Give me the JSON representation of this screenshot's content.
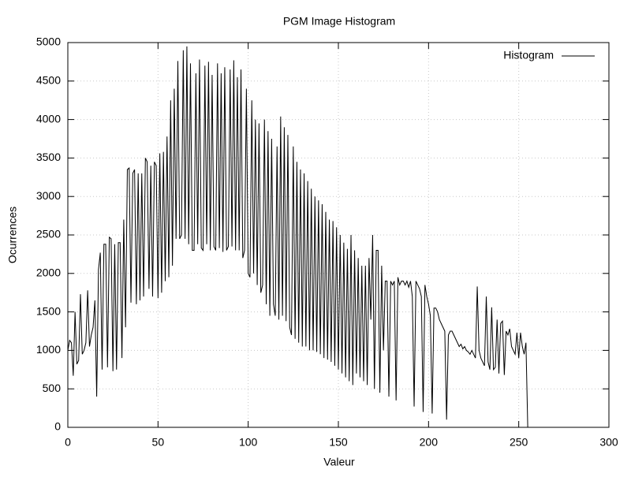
{
  "chart_data": {
    "type": "line",
    "title": "PGM Image Histogram",
    "x_label": "Valeur",
    "y_label": "Ocurrences",
    "x": [
      0,
      1,
      2,
      3,
      4,
      5,
      6,
      7,
      8,
      9,
      10,
      11,
      12,
      13,
      14,
      15,
      16,
      17,
      18,
      19,
      20,
      21,
      22,
      23,
      24,
      25,
      26,
      27,
      28,
      29,
      30,
      31,
      32,
      33,
      34,
      35,
      36,
      37,
      38,
      39,
      40,
      41,
      42,
      43,
      44,
      45,
      46,
      47,
      48,
      49,
      50,
      51,
      52,
      53,
      54,
      55,
      56,
      57,
      58,
      59,
      60,
      61,
      62,
      63,
      64,
      65,
      66,
      67,
      68,
      69,
      70,
      71,
      72,
      73,
      74,
      75,
      76,
      77,
      78,
      79,
      80,
      81,
      82,
      83,
      84,
      85,
      86,
      87,
      88,
      89,
      90,
      91,
      92,
      93,
      94,
      95,
      96,
      97,
      98,
      99,
      100,
      101,
      102,
      103,
      104,
      105,
      106,
      107,
      108,
      109,
      110,
      111,
      112,
      113,
      114,
      115,
      116,
      117,
      118,
      119,
      120,
      121,
      122,
      123,
      124,
      125,
      126,
      127,
      128,
      129,
      130,
      131,
      132,
      133,
      134,
      135,
      136,
      137,
      138,
      139,
      140,
      141,
      142,
      143,
      144,
      145,
      146,
      147,
      148,
      149,
      150,
      151,
      152,
      153,
      154,
      155,
      156,
      157,
      158,
      159,
      160,
      161,
      162,
      163,
      164,
      165,
      166,
      167,
      168,
      169,
      170,
      171,
      172,
      173,
      174,
      175,
      176,
      177,
      178,
      179,
      180,
      181,
      182,
      183,
      184,
      185,
      186,
      187,
      188,
      189,
      190,
      191,
      192,
      193,
      194,
      195,
      196,
      197,
      198,
      199,
      200,
      201,
      202,
      203,
      204,
      205,
      206,
      207,
      208,
      209,
      210,
      211,
      212,
      213,
      214,
      215,
      216,
      217,
      218,
      219,
      220,
      221,
      222,
      223,
      224,
      225,
      226,
      227,
      228,
      229,
      230,
      231,
      232,
      233,
      234,
      235,
      236,
      237,
      238,
      239,
      240,
      241,
      242,
      243,
      244,
      245,
      246,
      247,
      248,
      249,
      250,
      251,
      252,
      253,
      254,
      255
    ],
    "series": [
      {
        "name": "Histogram",
        "color": "#000000",
        "values": [
          1000,
          1130,
          1100,
          670,
          1500,
          820,
          870,
          1730,
          950,
          1000,
          1100,
          1780,
          1050,
          1200,
          1300,
          1650,
          400,
          2050,
          2270,
          750,
          2380,
          2380,
          780,
          2470,
          2450,
          730,
          2380,
          750,
          2400,
          2400,
          900,
          2700,
          1300,
          3350,
          3370,
          1620,
          3300,
          3350,
          1600,
          3300,
          1650,
          3300,
          1700,
          3500,
          3450,
          1800,
          3400,
          1700,
          3450,
          3400,
          1680,
          3560,
          1750,
          3580,
          1900,
          3780,
          1950,
          4250,
          2100,
          4400,
          2450,
          4760,
          2450,
          2500,
          4900,
          2450,
          4950,
          2380,
          4730,
          2300,
          2300,
          4600,
          2380,
          4780,
          2330,
          2300,
          4700,
          2380,
          4750,
          2300,
          4580,
          2350,
          2300,
          4730,
          2330,
          4600,
          2280,
          4680,
          2300,
          2350,
          4650,
          2350,
          4770,
          2300,
          4550,
          2300,
          4650,
          2200,
          2300,
          4400,
          2000,
          1950,
          4250,
          2000,
          4000,
          1850,
          3950,
          1750,
          1850,
          4000,
          1600,
          3850,
          1450,
          3750,
          1600,
          1450,
          3650,
          1400,
          4040,
          1450,
          3900,
          1380,
          3800,
          1300,
          1200,
          3650,
          1150,
          3450,
          1100,
          3350,
          1050,
          3300,
          1050,
          3200,
          1000,
          3100,
          1000,
          3000,
          980,
          2950,
          950,
          2900,
          900,
          2800,
          880,
          2700,
          850,
          2680,
          800,
          2600,
          750,
          2500,
          700,
          2400,
          650,
          2320,
          600,
          2500,
          550,
          2300,
          700,
          2200,
          650,
          2100,
          600,
          2100,
          550,
          2200,
          1400,
          2500,
          500,
          2300,
          2300,
          450,
          2100,
          1000,
          1900,
          1900,
          400,
          1900,
          1850,
          1900,
          350,
          1950,
          1850,
          1900,
          1900,
          1850,
          1900,
          1820,
          1900,
          1700,
          270,
          1900,
          1850,
          1800,
          1700,
          200,
          1850,
          1700,
          1600,
          1450,
          180,
          1550,
          1550,
          1500,
          1400,
          1350,
          1300,
          1250,
          100,
          1200,
          1250,
          1250,
          1200,
          1150,
          1100,
          1050,
          1080,
          1020,
          1050,
          1000,
          980,
          950,
          1000,
          950,
          900,
          1830,
          1000,
          900,
          850,
          800,
          1700,
          850,
          750,
          1560,
          750,
          780,
          1400,
          700,
          1350,
          1380,
          680,
          1250,
          1200,
          1280,
          1050,
          1000,
          950,
          1230,
          900,
          1230,
          1050,
          950,
          1100,
          0
        ]
      }
    ],
    "xlim": [
      0,
      300
    ],
    "xticks": [
      0,
      50,
      100,
      150,
      200,
      250,
      300
    ],
    "ylim": [
      0,
      5000
    ],
    "yticks": [
      0,
      500,
      1000,
      1500,
      2000,
      2500,
      3000,
      3500,
      4000,
      4500,
      5000
    ],
    "grid": true,
    "legend": "top-right"
  }
}
